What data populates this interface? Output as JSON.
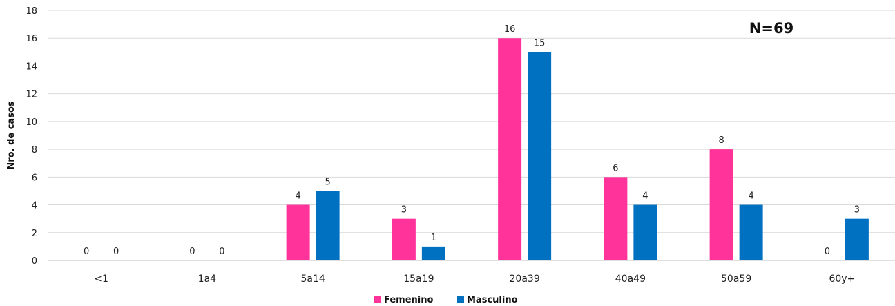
{
  "chart_data": {
    "type": "bar",
    "title": "",
    "xlabel": "",
    "ylabel": "Nro. de casos",
    "ylim": [
      0,
      18
    ],
    "yticks": [
      0,
      2,
      4,
      6,
      8,
      10,
      12,
      14,
      16,
      18
    ],
    "grid": true,
    "legend_position": "bottom",
    "annotation": "N=69",
    "categories": [
      "<1",
      "1a4",
      "5a14",
      "15a19",
      "20a39",
      "40a49",
      "50a59",
      "60y+"
    ],
    "series": [
      {
        "name": "Femenino",
        "color": "#ff3399",
        "values": [
          0,
          0,
          4,
          3,
          16,
          6,
          8,
          0
        ]
      },
      {
        "name": "Masculino",
        "color": "#0070c0",
        "values": [
          0,
          0,
          5,
          1,
          15,
          4,
          4,
          3
        ]
      }
    ]
  }
}
